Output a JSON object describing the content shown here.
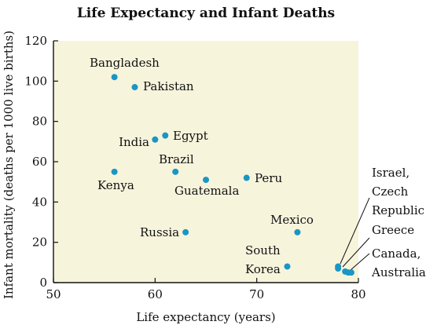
{
  "colors": {
    "plot_background": "#f7f4dc",
    "point": "#1a96c4",
    "axis": "#111111",
    "text": "#111111"
  },
  "chart_data": {
    "type": "scatter",
    "title": "Life Expectancy and Infant Deaths",
    "xlabel": "Life expectancy (years)",
    "ylabel": "Infant mortality (deaths per 1000 live births)",
    "xlim": [
      50,
      80
    ],
    "ylim": [
      0,
      120
    ],
    "xticks": [
      50,
      60,
      70,
      80
    ],
    "yticks": [
      0,
      20,
      40,
      60,
      80,
      100,
      120
    ],
    "grid": false,
    "points": [
      {
        "x": 56,
        "y": 102
      },
      {
        "x": 58,
        "y": 97
      },
      {
        "x": 60,
        "y": 71
      },
      {
        "x": 61,
        "y": 73
      },
      {
        "x": 62,
        "y": 55
      },
      {
        "x": 56,
        "y": 55
      },
      {
        "x": 65,
        "y": 51
      },
      {
        "x": 69,
        "y": 52
      },
      {
        "x": 63,
        "y": 25
      },
      {
        "x": 74,
        "y": 25
      },
      {
        "x": 73,
        "y": 8
      },
      {
        "x": 78,
        "y": 8
      },
      {
        "x": 78,
        "y": 7
      },
      {
        "x": 78.7,
        "y": 5.5
      },
      {
        "x": 79,
        "y": 5
      },
      {
        "x": 79.3,
        "y": 5
      }
    ],
    "labels": [
      {
        "lines": [
          "Bangladesh"
        ]
      },
      {
        "lines": [
          "Pakistan"
        ]
      },
      {
        "lines": [
          "India"
        ]
      },
      {
        "lines": [
          "Egypt"
        ]
      },
      {
        "lines": [
          "Brazil"
        ]
      },
      {
        "lines": [
          "Kenya"
        ]
      },
      {
        "lines": [
          "Guatemala"
        ]
      },
      {
        "lines": [
          "Peru"
        ]
      },
      {
        "lines": [
          "Russia"
        ]
      },
      {
        "lines": [
          "Mexico"
        ]
      },
      {
        "lines": [
          "South",
          "Korea"
        ]
      },
      {
        "lines": [
          "Israel,",
          "Czech",
          "Republic"
        ]
      },
      {
        "lines": [
          "Greece"
        ]
      },
      {
        "lines": [
          "Canada,",
          "Australia"
        ]
      }
    ]
  }
}
